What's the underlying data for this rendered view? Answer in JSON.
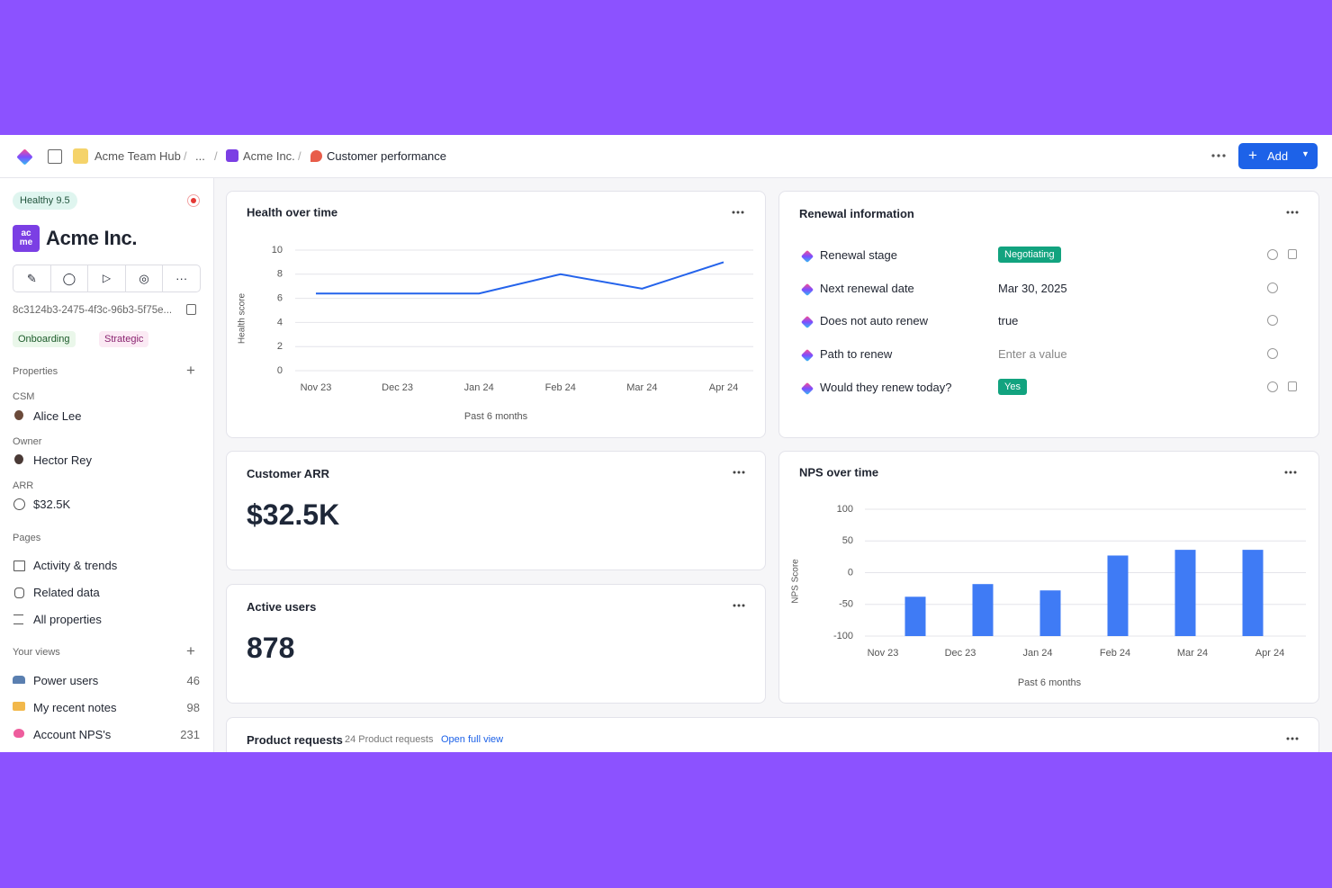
{
  "topbar": {
    "breadcrumbs": [
      "Acme Team Hub",
      "...",
      "Acme Inc.",
      "Customer performance"
    ],
    "add_button": "Add"
  },
  "sidebar": {
    "health_badge": "Healthy 9.5",
    "logo": [
      "ac",
      "me"
    ],
    "company": "Acme Inc.",
    "record_id": "8c3124b3-2475-4f3c-96b3-5f75e...",
    "tags": [
      "Onboarding",
      "Strategic"
    ],
    "properties_title": "Properties",
    "properties": [
      {
        "label": "CSM",
        "value": "Alice Lee"
      },
      {
        "label": "Owner",
        "value": "Hector Rey"
      },
      {
        "label": "ARR",
        "value": "$32.5K"
      }
    ],
    "pages_title": "Pages",
    "pages": [
      "Activity & trends",
      "Related data",
      "All properties"
    ],
    "views_title": "Your views",
    "views": [
      {
        "name": "Power users",
        "count": 46
      },
      {
        "name": "My recent notes",
        "count": 98
      },
      {
        "name": "Account NPS's",
        "count": 231
      }
    ]
  },
  "renewal": {
    "title": "Renewal information",
    "rows": [
      {
        "label": "Renewal stage",
        "value": "Negotiating",
        "style": "badge",
        "color": "#12a37f"
      },
      {
        "label": "Next renewal date",
        "value": "Mar 30, 2025"
      },
      {
        "label": "Does not auto renew",
        "value": "true"
      },
      {
        "label": "Path to renew",
        "value": "Enter a value",
        "style": "placeholder"
      },
      {
        "label": "Would they renew today?",
        "value": "Yes",
        "style": "badge",
        "color": "#12a37f"
      }
    ]
  },
  "arr_card": {
    "title": "Customer ARR",
    "value": "$32.5K"
  },
  "users_card": {
    "title": "Active users",
    "value": "878"
  },
  "requests_card": {
    "title": "Product requests",
    "count_text": "24 Product requests",
    "link": "Open full view"
  },
  "chart_data": [
    {
      "type": "line",
      "title": "Health over time",
      "y_label": "Health score",
      "x_label": "Past 6 months",
      "categories": [
        "Nov 23",
        "Dec 23",
        "Jan 24",
        "Feb 24",
        "Mar 24",
        "Apr 24"
      ],
      "values": [
        6.4,
        6.4,
        6.4,
        8,
        6.8,
        9
      ],
      "color": "#2463eb",
      "ylim": [
        0,
        10
      ],
      "yticks": [
        0,
        2,
        4,
        6,
        8,
        10
      ],
      "grid": true
    },
    {
      "type": "bar",
      "title": "NPS over time",
      "y_label": "NPS Score",
      "x_label": "Past 6 months",
      "categories": [
        "Nov 23",
        "Dec 23",
        "Jan 24",
        "Feb 24",
        "Mar 24",
        "Apr 24"
      ],
      "values": [
        -38,
        -18,
        -28,
        27,
        36,
        36
      ],
      "color": "#3f7bf5",
      "ylim": [
        -100,
        100
      ],
      "yticks": [
        -100,
        -50,
        0,
        50,
        100
      ],
      "grid": true
    }
  ]
}
